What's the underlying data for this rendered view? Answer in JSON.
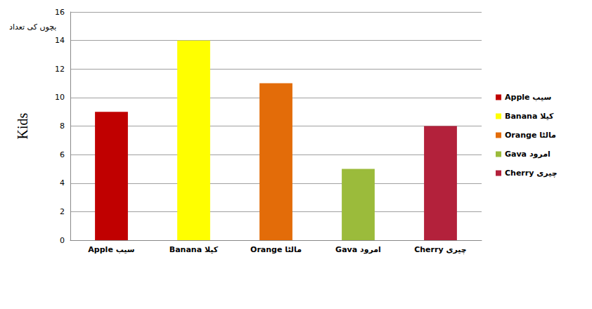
{
  "chart_data": {
    "type": "bar",
    "title": "بچوں کی تعداد",
    "y_label": "Kids",
    "categories": [
      "Apple سیب",
      "Banana کیلا",
      "Orange مالٹا",
      "Gava امرود",
      "Cherry چیری"
    ],
    "values": [
      9,
      14,
      11,
      5,
      8
    ],
    "colors": [
      "#c00000",
      "#ffff00",
      "#e36c09",
      "#9bbb3b",
      "#b3213b"
    ],
    "ylim": [
      0,
      16
    ],
    "yticks": [
      0,
      2,
      4,
      6,
      8,
      10,
      12,
      14,
      16
    ],
    "grid": true,
    "legend": "right"
  }
}
